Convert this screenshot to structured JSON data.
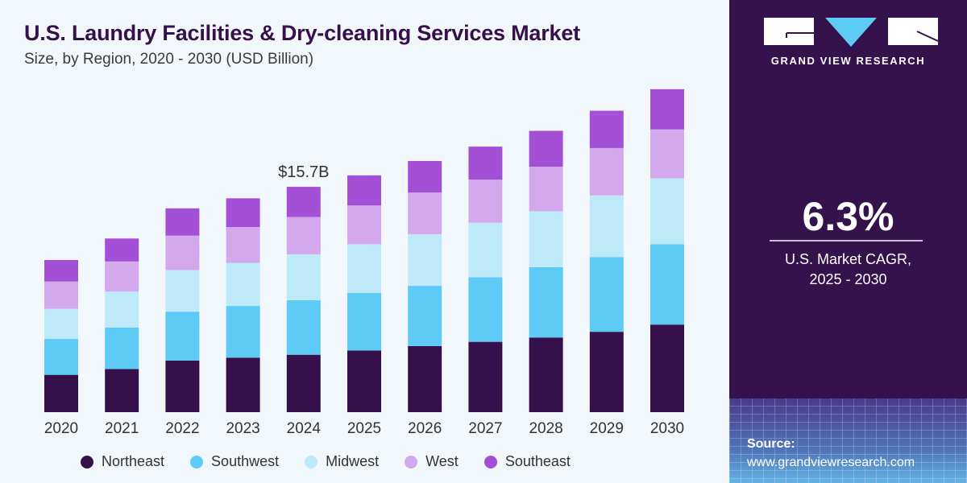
{
  "header": {
    "title": "U.S. Laundry Facilities & Dry-cleaning Services Market",
    "subtitle": "Size, by Region, 2020 - 2030 (USD Billion)"
  },
  "chart_data": {
    "type": "bar",
    "stacked": true,
    "title": "U.S. Laundry Facilities & Dry-cleaning Services Market",
    "subtitle": "Size, by Region, 2020 - 2030 (USD Billion)",
    "xlabel": "",
    "ylabel": "USD Billion",
    "ylim": [
      0,
      25
    ],
    "grid": false,
    "legend_position": "bottom",
    "categories": [
      "2020",
      "2021",
      "2022",
      "2023",
      "2024",
      "2025",
      "2026",
      "2027",
      "2028",
      "2029",
      "2030"
    ],
    "series": [
      {
        "name": "Northeast",
        "color": "#36104a",
        "values": [
          2.6,
          3.0,
          3.6,
          3.8,
          4.0,
          4.3,
          4.6,
          4.9,
          5.2,
          5.6,
          6.1
        ]
      },
      {
        "name": "Southwest",
        "color": "#5ecbf7",
        "values": [
          2.5,
          2.9,
          3.4,
          3.6,
          3.8,
          4.0,
          4.2,
          4.5,
          4.9,
          5.2,
          5.6
        ]
      },
      {
        "name": "Midwest",
        "color": "#bde9f9",
        "values": [
          2.1,
          2.5,
          2.9,
          3.0,
          3.2,
          3.4,
          3.6,
          3.8,
          3.9,
          4.3,
          4.6
        ]
      },
      {
        "name": "West",
        "color": "#d3a8ec",
        "values": [
          1.9,
          2.1,
          2.4,
          2.5,
          2.6,
          2.7,
          2.9,
          3.0,
          3.1,
          3.3,
          3.4
        ]
      },
      {
        "name": "Southeast",
        "color": "#a34fd6",
        "values": [
          1.5,
          1.6,
          1.9,
          2.0,
          2.1,
          2.1,
          2.2,
          2.3,
          2.5,
          2.6,
          2.8
        ]
      }
    ],
    "annotations": [
      {
        "category": "2024",
        "text": "$15.7B"
      }
    ]
  },
  "legend": [
    {
      "label": "Northeast",
      "color": "#36104a"
    },
    {
      "label": "Southwest",
      "color": "#5ecbf7"
    },
    {
      "label": "Midwest",
      "color": "#bde9f9"
    },
    {
      "label": "West",
      "color": "#d3a8ec"
    },
    {
      "label": "Southeast",
      "color": "#a34fd6"
    }
  ],
  "sidebar": {
    "brand": "GRAND VIEW RESEARCH",
    "cagr_value": "6.3%",
    "cagr_label_line1": "U.S. Market CAGR,",
    "cagr_label_line2": "2025 - 2030",
    "source_label": "Source:",
    "source_url": "www.grandviewresearch.com",
    "brand_accent": "#5ecbf7",
    "background": "#36124d"
  }
}
